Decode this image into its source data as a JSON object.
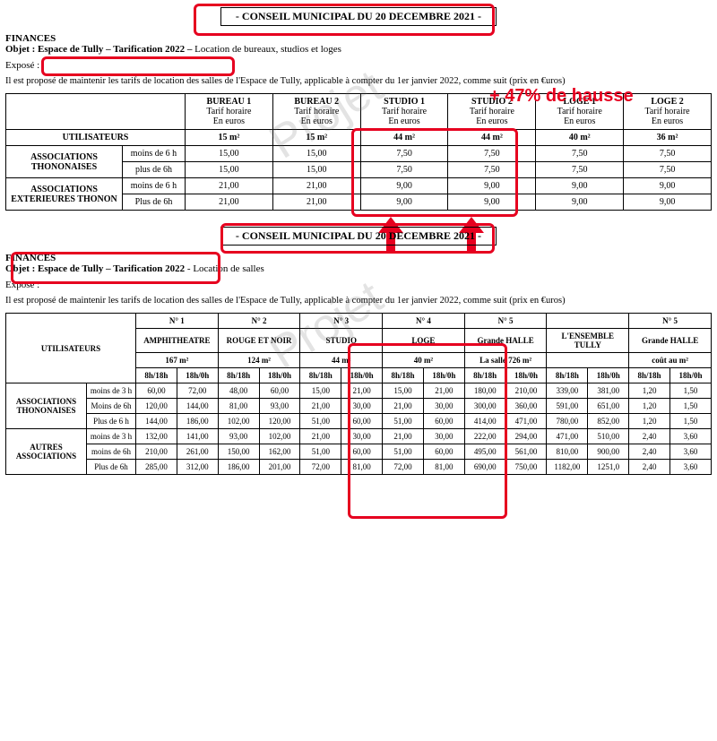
{
  "annotation": {
    "hausse_text": "+ 47% de hausse",
    "hausse_color": "#e6001f"
  },
  "watermark": "Projet",
  "doc1": {
    "title": "- CONSEIL MUNICIPAL DU 20 DECEMBRE 2021 -",
    "finances": "FINANCES",
    "objet_prefix": "Objet : ",
    "objet_highlight": "Espace de Tully – Tarification 2022 –",
    "objet_suffix": " Location de bureaux, studios et loges",
    "expose": "Exposé :",
    "intro": "Il est proposé de maintenir les tarifs de location des salles de l'Espace de Tully, applicable à compter du 1er janvier 2022, comme suit (prix en €uros)",
    "table": {
      "cols": [
        {
          "name": "BUREAU 1",
          "sub": "Tarif horaire",
          "unit": "En euros",
          "area": "15 m²"
        },
        {
          "name": "BUREAU 2",
          "sub": "Tarif horaire",
          "unit": "En euros",
          "area": "15 m²"
        },
        {
          "name": "STUDIO 1",
          "sub": "Tarif horaire",
          "unit": "En euros",
          "area": "44 m²"
        },
        {
          "name": "STUDIO 2",
          "sub": "Tarif horaire",
          "unit": "En euros",
          "area": "44 m²"
        },
        {
          "name": "LOGE 1",
          "sub": "Tarif horaire",
          "unit": "En euros",
          "area": "40 m²"
        },
        {
          "name": "LOGE 2",
          "sub": "Tarif horaire",
          "unit": "En euros",
          "area": "36 m²"
        }
      ],
      "users_label": "UTILISATEURS",
      "groups": [
        {
          "name": "ASSOCIATIONS THONONAISES",
          "rows": [
            {
              "label": "moins de 6 h",
              "vals": [
                "15,00",
                "15,00",
                "7,50",
                "7,50",
                "7,50",
                "7,50"
              ]
            },
            {
              "label": "plus de 6h",
              "vals": [
                "15,00",
                "15,00",
                "7,50",
                "7,50",
                "7,50",
                "7,50"
              ]
            }
          ]
        },
        {
          "name": "ASSOCIATIONS EXTERIEURES THONON",
          "rows": [
            {
              "label": "moins de 6 h",
              "vals": [
                "21,00",
                "21,00",
                "9,00",
                "9,00",
                "9,00",
                "9,00"
              ]
            },
            {
              "label": "Plus de 6h",
              "vals": [
                "21,00",
                "21,00",
                "9,00",
                "9,00",
                "9,00",
                "9,00"
              ]
            }
          ]
        }
      ]
    }
  },
  "doc2": {
    "title": "- CONSEIL MUNICIPAL DU 20 DECEMBRE 2021 -",
    "finances": "FINANCES",
    "objet_prefix": "Objet : ",
    "objet_highlight": "Espace de Tully – Tarification 2022",
    "objet_suffix": " - Location de salles",
    "expose": "Exposé :",
    "intro": "Il est proposé de maintenir les tarifs de location des salles de l'Espace de Tully, applicable à compter du 1er janvier 2022, comme suit (prix en €uros)",
    "table": {
      "users_label": "UTILISATEURS",
      "topnums": [
        "N° 1",
        "N° 2",
        "N° 3",
        "N° 4",
        "N° 5",
        "",
        "N° 5"
      ],
      "names": [
        "AMPHITHEATRE",
        "ROUGE ET NOIR",
        "STUDIO",
        "LOGE",
        "Grande HALLE",
        "L'ENSEMBLE TULLY",
        "Grande HALLE"
      ],
      "areas": [
        "167 m²",
        "124 m²",
        "44 m²",
        "40 m²",
        "La salle 726 m²",
        "",
        "coût au m²"
      ],
      "slotcols": [
        "8h/18h",
        "18h/0h",
        "8h/18h",
        "18h/0h",
        "8h/18h",
        "18h/0h",
        "8h/18h",
        "18h/0h",
        "8h/18h",
        "18h/0h",
        "8h/18h",
        "18h/0h",
        "8h/18h",
        "18h/0h"
      ],
      "groups": [
        {
          "name": "ASSOCIATIONS THONONAISES",
          "rows": [
            {
              "label": "moins de 3 h",
              "vals": [
                "60,00",
                "72,00",
                "48,00",
                "60,00",
                "15,00",
                "21,00",
                "15,00",
                "21,00",
                "180,00",
                "210,00",
                "339,00",
                "381,00",
                "1,20",
                "1,50"
              ]
            },
            {
              "label": "Moins de 6h",
              "vals": [
                "120,00",
                "144,00",
                "81,00",
                "93,00",
                "21,00",
                "30,00",
                "21,00",
                "30,00",
                "300,00",
                "360,00",
                "591,00",
                "651,00",
                "1,20",
                "1,50"
              ]
            },
            {
              "label": "Plus de 6 h",
              "vals": [
                "144,00",
                "186,00",
                "102,00",
                "120,00",
                "51,00",
                "60,00",
                "51,00",
                "60,00",
                "414,00",
                "471,00",
                "780,00",
                "852,00",
                "1,20",
                "1,50"
              ]
            }
          ]
        },
        {
          "name": "AUTRES ASSOCIATIONS",
          "rows": [
            {
              "label": "moins de 3 h",
              "vals": [
                "132,00",
                "141,00",
                "93,00",
                "102,00",
                "21,00",
                "30,00",
                "21,00",
                "30,00",
                "222,00",
                "294,00",
                "471,00",
                "510,00",
                "2,40",
                "3,60"
              ]
            },
            {
              "label": "moins de 6h",
              "vals": [
                "210,00",
                "261,00",
                "150,00",
                "162,00",
                "51,00",
                "60,00",
                "51,00",
                "60,00",
                "495,00",
                "561,00",
                "810,00",
                "900,00",
                "2,40",
                "3,60"
              ]
            },
            {
              "label": "Plus de 6h",
              "vals": [
                "285,00",
                "312,00",
                "186,00",
                "201,00",
                "72,00",
                "81,00",
                "72,00",
                "81,00",
                "690,00",
                "750,00",
                "1182,00",
                "1251,0",
                "2,40",
                "3,60"
              ]
            }
          ]
        }
      ]
    }
  }
}
